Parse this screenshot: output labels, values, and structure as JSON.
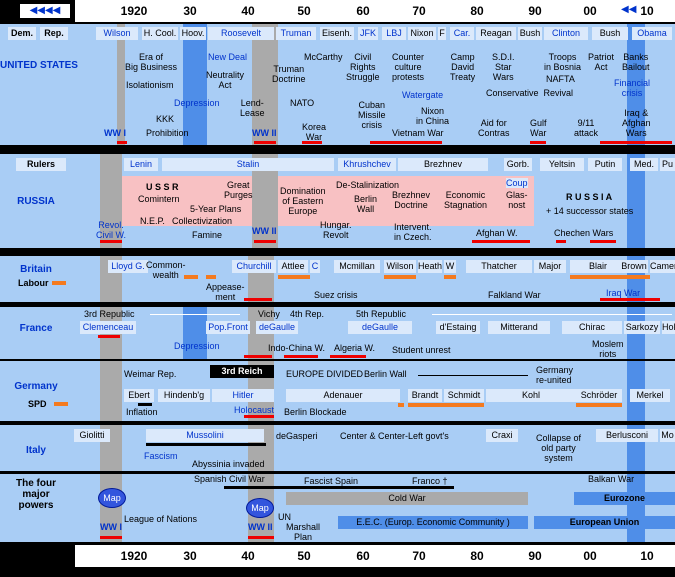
{
  "ruler": {
    "top_years": [
      "1920",
      "30",
      "40",
      "50",
      "60",
      "70",
      "80",
      "90",
      "00",
      "10"
    ],
    "bottom_years": [
      "1920",
      "30",
      "40",
      "50",
      "60",
      "70",
      "80",
      "90",
      "00",
      "10"
    ],
    "nav_left": "◀◀◀◀",
    "nav_right": "◀◀"
  },
  "us": {
    "label": "UNITED STATES",
    "party_dem": "Dem.",
    "party_rep": "Rep.",
    "presidents": [
      "Wilson",
      "H. Cool.",
      "Hoov.",
      "Roosevelt",
      "Truman",
      "Eisenh.",
      "JFK",
      "LBJ",
      "Nixon",
      "F",
      "Car.",
      "Reagan",
      "Bush",
      "Clinton",
      "Bush",
      "Obama"
    ],
    "events": {
      "era": "Era of\nBig Business",
      "isolationism": "Isolationism",
      "kkk": "KKK",
      "prohibition": "Prohibition",
      "new_deal": "New Deal",
      "neutrality": "Neutrality\nAct",
      "depression": "Depression",
      "lend_lease": "Lend-\nLease",
      "truman_doctrine": "Truman\nDoctrine",
      "mccarthy": "McCarthy",
      "nato": "NATO",
      "korea": "Korea\nWar",
      "civil_rights": "Civil\nRights\nStruggle",
      "counter_culture": "Counter\nculture\nprotests",
      "cuban": "Cuban\nMissile\ncrisis",
      "watergate": "Watergate",
      "nixon_china": "Nixon\nin China",
      "vietnam": "Vietnam War",
      "camp_david": "Camp\nDavid\nTreaty",
      "sdi": "S.D.I.\nStar\nWars",
      "troops": "Troops\nin Bosnia",
      "nafta": "NAFTA",
      "patriot": "Patriot\nAct",
      "banks": "Banks\nBailout",
      "financial": "Financial\ncrisis",
      "conservative": "Conservative  Revival",
      "contras": "Aid for\nContras",
      "gulf": "Gulf\nWar",
      "nine_eleven": "9/11\nattack",
      "iraq": "Iraq &\nAfghan\nWars",
      "ww1": "WW I",
      "ww2": "WW II"
    }
  },
  "russia": {
    "label": "RUSSIA",
    "rulers": "Rulers",
    "leaders": [
      "Lenin",
      "Stalin",
      "Khrushchev",
      "Brezhnev",
      "Gorb.",
      "Yeltsin",
      "Putin",
      "Med.",
      "Pu"
    ],
    "ussr": "U S S R",
    "comintern": "Comintern",
    "five_year": "5-Year Plans",
    "great_purges": "Great\nPurges",
    "nep": "N.E.P.",
    "collectivization": "Collectivization",
    "famine": "Famine",
    "domination": "Domination\nof Eastern\nEurope",
    "destalin": "De-Stalinization",
    "berlin_wall": "Berlin\nWall",
    "brezhnev_doctrine": "Brezhnev\nDoctrine",
    "economic_stagnation": "Economic\nStagnation",
    "coup": "Coup",
    "glasnost": "Glas-\nnost",
    "russia_title": "R U S S I A",
    "successor": "+ 14 successor states",
    "revol": "Revol.\nCivil W.",
    "hungar": "Hungar.\nRevolt",
    "intervent": "Intervent.\nin Czech.",
    "afghan": "Afghan W.",
    "chechen": "Chechen Wars",
    "ww2": "WW II"
  },
  "britain": {
    "label": "Britain",
    "labour": "Labour",
    "leaders": [
      "Lloyd G.",
      "Churchill",
      "Attlee",
      "C",
      "Mcmillan",
      "Wilson",
      "Heath",
      "W",
      "Thatcher",
      "Major",
      "Blair",
      "Brown",
      "Camer"
    ],
    "commonwealth": "Common-\nwealth",
    "appeasement": "Appease-\nment",
    "suez": "Suez crisis",
    "falkland": "Falkland War",
    "iraq": "Iraq War"
  },
  "france": {
    "label": "France",
    "third": "3rd Republic",
    "vichy": "Vichy",
    "fourth": "4th Rep.",
    "fifth": "5th Republic",
    "leaders": [
      "Clemenceau",
      "Pop.Front",
      "deGaulle",
      "deGaulle",
      "d'Estaing",
      "Mitterand",
      "Chirac",
      "Sarkozy",
      "Hol"
    ],
    "depression": "Depression",
    "indochina": "Indo-China W.",
    "algeria": "Algeria W.",
    "student": "Student unrest",
    "moslem": "Moslem\nriots"
  },
  "germany": {
    "label": "Germany",
    "spd": "SPD",
    "weimar": "Weimar Rep.",
    "third_reich": "3rd Reich",
    "europe_divided": "EUROPE DIVIDED",
    "berlin_wall": "Berlin Wall",
    "reunited": "Germany\nre-united",
    "leaders": [
      "Ebert",
      "Hindenb'g",
      "Hitler",
      "Adenauer",
      "Brandt",
      "Schmidt",
      "Kohl",
      "Schröder",
      "Merkel"
    ],
    "inflation": "Inflation",
    "holocaust": "Holocaust",
    "blockade": "Berlin Blockade"
  },
  "italy": {
    "label": "Italy",
    "leaders": [
      "Giolitti",
      "Mussolini",
      "deGasperi",
      "Center & Center-Left govt's",
      "Craxi",
      "Berlusconi",
      "Mo"
    ],
    "fascism": "Fascism",
    "abyssinia": "Abyssinia invaded",
    "collapse": "Collapse of\nold party\nsystem"
  },
  "powers": {
    "label": "The four\nmajor\npowers",
    "map": "Map",
    "spanish": "Spanish Civil War",
    "fascist_spain": "Fascist Spain",
    "franco": "Franco †",
    "balkan": "Balkan War",
    "cold_war": "Cold War",
    "eurozone": "Eurozone",
    "league": "League of Nations",
    "un": "UN",
    "marshall": "Marshall\nPlan",
    "eec": "E.E.C.  (Europ. Economic Community )",
    "eu": "European Union",
    "ww1": "WW I",
    "ww2": "WW II"
  },
  "colors": {
    "row_bg": "#a9cdf5",
    "ussr_pink": "#f8c1c3",
    "red_line": "#e00000",
    "orange": "#f47a1f",
    "label_blue": "#0033cc"
  }
}
